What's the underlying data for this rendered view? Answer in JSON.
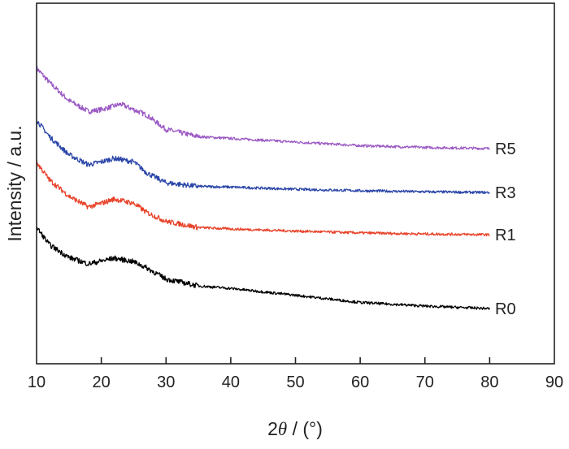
{
  "chart_data": {
    "type": "line",
    "title": "",
    "xlabel_prefix": "2",
    "xlabel_symbol": "θ",
    "xlabel_suffix": " / (°)",
    "ylabel": "Intensity / a.u.",
    "xlim": [
      10,
      90
    ],
    "ylim": [
      0,
      100
    ],
    "xticks": [
      10,
      20,
      30,
      40,
      50,
      60,
      70,
      80,
      90
    ],
    "xtick_labels": [
      "10",
      "20",
      "30",
      "40",
      "50",
      "60",
      "70",
      "80",
      "90"
    ],
    "grid": false,
    "legend": "inline labels at right end of each curve",
    "series": [
      {
        "name": "R5",
        "color": "#9b59c4",
        "x": [
          10,
          12,
          15,
          18,
          20,
          23,
          27,
          30,
          35,
          40,
          50,
          60,
          70,
          80
        ],
        "y": [
          82,
          78,
          73,
          70,
          70.5,
          72,
          69,
          65,
          63,
          62.5,
          61.5,
          60.5,
          60,
          59.7
        ]
      },
      {
        "name": "R3",
        "color": "#2a45a8",
        "x": [
          10,
          12,
          15,
          18,
          20,
          22,
          25,
          27,
          30,
          35,
          40,
          50,
          60,
          70,
          80
        ],
        "y": [
          67.6,
          63,
          58,
          55.2,
          56,
          57,
          56,
          53,
          50.2,
          49.2,
          49,
          48.4,
          48,
          47.7,
          47.5
        ]
      },
      {
        "name": "R1",
        "color": "#e8432a",
        "x": [
          10,
          12,
          15,
          18,
          20,
          22,
          25,
          27,
          30,
          35,
          40,
          50,
          60,
          70,
          80
        ],
        "y": [
          55.9,
          51,
          46.5,
          43.5,
          44.5,
          45.7,
          44.5,
          42,
          39.5,
          37.8,
          37.4,
          36.8,
          36.3,
          36,
          35.8
        ]
      },
      {
        "name": "R0",
        "color": "#000000",
        "x": [
          10,
          12,
          15,
          18,
          20,
          22,
          25,
          27,
          30,
          35,
          40,
          50,
          60,
          70,
          80
        ],
        "y": [
          37.8,
          33,
          29.5,
          27.7,
          28.5,
          29.3,
          28.3,
          26.6,
          23.5,
          21.6,
          20.9,
          19,
          17,
          16,
          15.3
        ]
      }
    ]
  }
}
